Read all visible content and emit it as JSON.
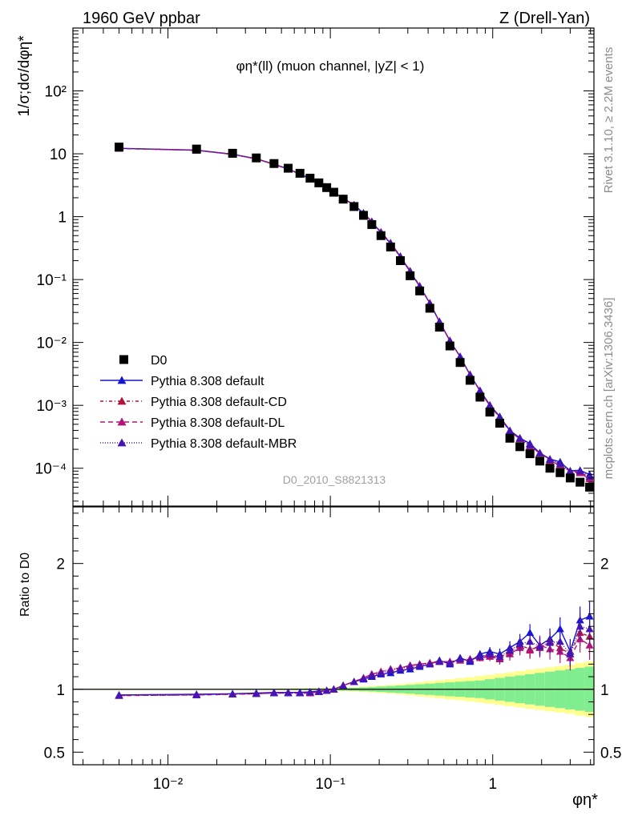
{
  "header": {
    "left": "1960 GeV ppbar",
    "right": "Z (Drell-Yan)"
  },
  "side": {
    "rivet": "Rivet 3.1.10, ≥ 2.2M events",
    "mcplots": "mcplots.cern.ch [arXiv:1306.3436]"
  },
  "plot_title": "φη*(ll) (muon channel, |yZ| < 1)",
  "analysis_id": "D0_2010_S8821313",
  "upper_ylabel": "1/σ;dσ/dφη*",
  "lower_ylabel": "Ratio to D0",
  "xlabel": "φη*",
  "upper_yticks": [
    "10⁻⁴",
    "10⁻³",
    "10⁻²",
    "10⁻¹",
    "1",
    "10",
    "10²"
  ],
  "lower_yticks": [
    "0.5",
    "1",
    "2"
  ],
  "xticks": [
    "10⁻²",
    "10⁻¹",
    "1"
  ],
  "legend": [
    {
      "label": "D0",
      "color": "#000000",
      "marker": "square",
      "dash": ""
    },
    {
      "label": "Pythia 8.308 default",
      "color": "#1414d2",
      "marker": "triangle",
      "dash": ""
    },
    {
      "label": "Pythia 8.308 default-CD",
      "color": "#b4143c",
      "marker": "triangle",
      "dash": "4,3,1,3"
    },
    {
      "label": "Pythia 8.308 default-DL",
      "color": "#b41478",
      "marker": "triangle",
      "dash": "6,4"
    },
    {
      "label": "Pythia 8.308 default-MBR",
      "color": "#4614b4",
      "marker": "triangle",
      "dash": "1,2"
    }
  ],
  "chart_data": {
    "type": "line",
    "title": "φη*(ll) (muon channel, |yZ| < 1)",
    "xlabel": "φη*",
    "ylabel": "1/σ;dσ/dφη*",
    "xscale": "log",
    "yscale": "log",
    "xlim": [
      0.0026,
      4.2
    ],
    "ylim": [
      2.5e-05,
      1000
    ],
    "ratio_ylim": [
      0.4,
      2.45
    ],
    "x": [
      0.005,
      0.015,
      0.025,
      0.035,
      0.045,
      0.055,
      0.065,
      0.075,
      0.085,
      0.095,
      0.105,
      0.12,
      0.14,
      0.16,
      0.18,
      0.205,
      0.235,
      0.27,
      0.31,
      0.355,
      0.41,
      0.47,
      0.545,
      0.63,
      0.725,
      0.835,
      0.96,
      1.105,
      1.275,
      1.47,
      1.695,
      1.95,
      2.25,
      2.6,
      3.0,
      3.45,
      3.95
    ],
    "data": {
      "name": "D0",
      "values": [
        12.8,
        11.9,
        10.2,
        8.6,
        7.0,
        5.9,
        4.9,
        4.1,
        3.45,
        2.9,
        2.45,
        1.9,
        1.45,
        1.05,
        0.75,
        0.5,
        0.33,
        0.2,
        0.115,
        0.066,
        0.035,
        0.0175,
        0.0088,
        0.0048,
        0.0025,
        0.00135,
        0.00078,
        0.00052,
        0.0003,
        0.00022,
        0.00017,
        0.00013,
        0.0001,
        8.5e-05,
        7e-05,
        6e-05,
        5e-05
      ],
      "band_inner": [
        0.003,
        0.003,
        0.003,
        0.004,
        0.004,
        0.005,
        0.005,
        0.006,
        0.006,
        0.007,
        0.008,
        0.01,
        0.012,
        0.015,
        0.018,
        0.022,
        0.026,
        0.03,
        0.035,
        0.04,
        0.045,
        0.05,
        0.055,
        0.06,
        0.065,
        0.07,
        0.08,
        0.09,
        0.1,
        0.11,
        0.12,
        0.13,
        0.14,
        0.15,
        0.16,
        0.17,
        0.18
      ],
      "band_outer": [
        0.004,
        0.004,
        0.004,
        0.005,
        0.006,
        0.007,
        0.008,
        0.009,
        0.01,
        0.011,
        0.012,
        0.015,
        0.018,
        0.022,
        0.026,
        0.03,
        0.035,
        0.04,
        0.048,
        0.056,
        0.064,
        0.072,
        0.08,
        0.088,
        0.096,
        0.105,
        0.115,
        0.125,
        0.135,
        0.145,
        0.155,
        0.165,
        0.175,
        0.185,
        0.195,
        0.21,
        0.22
      ]
    },
    "series": [
      {
        "name": "Pythia 8.308 default",
        "ratio": [
          0.955,
          0.96,
          0.965,
          0.97,
          0.975,
          0.975,
          0.975,
          0.98,
          0.985,
          0.99,
          1.0,
          1.03,
          1.06,
          1.08,
          1.1,
          1.12,
          1.13,
          1.15,
          1.16,
          1.18,
          1.2,
          1.23,
          1.2,
          1.25,
          1.22,
          1.28,
          1.3,
          1.28,
          1.33,
          1.38,
          1.45,
          1.35,
          1.4,
          1.48,
          1.3,
          1.55,
          1.58
        ]
      },
      {
        "name": "Pythia 8.308 default-CD",
        "ratio": [
          0.95,
          0.955,
          0.96,
          0.965,
          0.97,
          0.97,
          0.97,
          0.97,
          0.98,
          0.99,
          1.0,
          1.03,
          1.06,
          1.09,
          1.12,
          1.14,
          1.16,
          1.17,
          1.19,
          1.2,
          1.21,
          1.22,
          1.22,
          1.23,
          1.24,
          1.26,
          1.27,
          1.25,
          1.3,
          1.35,
          1.32,
          1.33,
          1.38,
          1.33,
          1.28,
          1.45,
          1.42
        ]
      },
      {
        "name": "Pythia 8.308 default-DL",
        "ratio": [
          0.95,
          0.955,
          0.96,
          0.965,
          0.97,
          0.97,
          0.97,
          0.97,
          0.98,
          0.99,
          1.0,
          1.03,
          1.06,
          1.09,
          1.12,
          1.14,
          1.16,
          1.17,
          1.19,
          1.2,
          1.21,
          1.22,
          1.22,
          1.23,
          1.24,
          1.25,
          1.26,
          1.24,
          1.28,
          1.33,
          1.31,
          1.35,
          1.32,
          1.3,
          1.25,
          1.4,
          1.35
        ]
      },
      {
        "name": "Pythia 8.308 default-MBR",
        "ratio": [
          0.95,
          0.955,
          0.96,
          0.965,
          0.97,
          0.97,
          0.97,
          0.975,
          0.98,
          0.99,
          1.0,
          1.03,
          1.06,
          1.085,
          1.11,
          1.13,
          1.15,
          1.165,
          1.18,
          1.19,
          1.2,
          1.22,
          1.21,
          1.24,
          1.23,
          1.26,
          1.28,
          1.26,
          1.31,
          1.36,
          1.38,
          1.34,
          1.37,
          1.38,
          1.28,
          1.5,
          1.48
        ]
      }
    ]
  }
}
